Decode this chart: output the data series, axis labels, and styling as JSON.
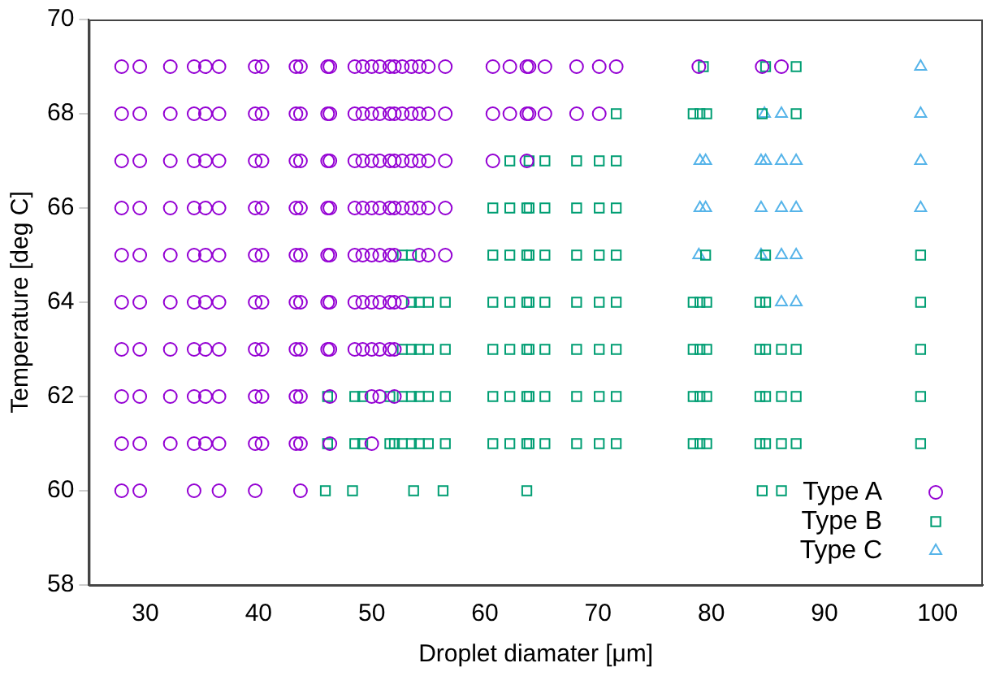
{
  "chart_data": {
    "type": "scatter",
    "xlabel": "Droplet diamater [μm]",
    "ylabel": "Temperature [deg C]",
    "xlim": [
      25,
      104
    ],
    "xticks": [
      30,
      40,
      50,
      60,
      70,
      80,
      90,
      100
    ],
    "ylim": [
      58,
      70
    ],
    "yticks": [
      58,
      60,
      62,
      64,
      66,
      68,
      70
    ],
    "grid": false,
    "legend": "bottom right",
    "series": [
      {
        "name": "Type A",
        "color": "#9400d3",
        "marker": "circle",
        "x": [
          27.9,
          29.5,
          32.2,
          34.3,
          35.3,
          36.5,
          39.7,
          40.3,
          43.3,
          43.7,
          46.1,
          46.3,
          48.5,
          49.2,
          50.0,
          50.7,
          51.6,
          52.0,
          52.7,
          53.5,
          54.2,
          55.0,
          56.5,
          60.7,
          62.2,
          63.7,
          63.9,
          65.3,
          68.1,
          70.1,
          71.6,
          78.9,
          84.5,
          86.2,
          27.9,
          29.5,
          32.2,
          34.3,
          35.3,
          36.5,
          39.7,
          40.3,
          43.3,
          43.7,
          46.1,
          46.3,
          48.5,
          49.2,
          50.0,
          50.7,
          51.6,
          52.0,
          52.7,
          53.5,
          54.2,
          55.0,
          56.5,
          60.7,
          62.2,
          63.7,
          63.9,
          65.3,
          68.1,
          70.1,
          27.9,
          29.5,
          32.2,
          34.3,
          35.3,
          36.5,
          39.7,
          40.3,
          43.3,
          43.7,
          46.1,
          46.3,
          48.5,
          49.2,
          50.0,
          50.7,
          51.6,
          52.0,
          52.7,
          53.5,
          54.2,
          55.0,
          56.5,
          60.7,
          63.7,
          27.9,
          29.5,
          32.2,
          34.3,
          35.3,
          36.5,
          39.7,
          40.3,
          43.3,
          43.7,
          46.1,
          46.3,
          48.5,
          49.2,
          50.0,
          50.7,
          51.6,
          52.0,
          52.7,
          53.5,
          54.2,
          55.0,
          56.5,
          27.9,
          29.5,
          32.2,
          34.3,
          35.3,
          36.5,
          39.7,
          40.3,
          43.3,
          43.7,
          46.1,
          46.3,
          48.5,
          49.2,
          50.0,
          50.7,
          51.6,
          52.0,
          54.2,
          55.0,
          56.5,
          27.9,
          29.5,
          32.2,
          34.3,
          35.3,
          36.5,
          39.7,
          40.3,
          43.3,
          43.7,
          46.1,
          46.3,
          48.5,
          49.2,
          50.0,
          50.7,
          51.6,
          52.0,
          52.7,
          27.9,
          29.5,
          32.2,
          34.3,
          35.3,
          36.5,
          39.7,
          40.3,
          43.3,
          43.7,
          46.1,
          46.3,
          48.5,
          49.2,
          50.0,
          50.7,
          51.6,
          52.0,
          27.9,
          29.5,
          32.2,
          34.3,
          35.3,
          36.5,
          39.7,
          40.3,
          43.3,
          43.7,
          46.3,
          50.0,
          50.7,
          52.0,
          27.9,
          29.5,
          32.2,
          34.3,
          35.3,
          36.5,
          39.7,
          40.3,
          43.3,
          43.7,
          46.3,
          50.0,
          27.9,
          29.5,
          34.3,
          36.5,
          39.7,
          43.7
        ],
        "values": [
          69,
          69,
          69,
          69,
          69,
          69,
          69,
          69,
          69,
          69,
          69,
          69,
          69,
          69,
          69,
          69,
          69,
          69,
          69,
          69,
          69,
          69,
          69,
          69,
          69,
          69,
          69,
          69,
          69,
          69,
          69,
          69,
          69,
          69,
          68,
          68,
          68,
          68,
          68,
          68,
          68,
          68,
          68,
          68,
          68,
          68,
          68,
          68,
          68,
          68,
          68,
          68,
          68,
          68,
          68,
          68,
          68,
          68,
          68,
          68,
          68,
          68,
          68,
          68,
          67,
          67,
          67,
          67,
          67,
          67,
          67,
          67,
          67,
          67,
          67,
          67,
          67,
          67,
          67,
          67,
          67,
          67,
          67,
          67,
          67,
          67,
          67,
          67,
          67,
          66,
          66,
          66,
          66,
          66,
          66,
          66,
          66,
          66,
          66,
          66,
          66,
          66,
          66,
          66,
          66,
          66,
          66,
          66,
          66,
          66,
          66,
          66,
          65,
          65,
          65,
          65,
          65,
          65,
          65,
          65,
          65,
          65,
          65,
          65,
          65,
          65,
          65,
          65,
          65,
          65,
          65,
          65,
          65,
          64,
          64,
          64,
          64,
          64,
          64,
          64,
          64,
          64,
          64,
          64,
          64,
          64,
          64,
          64,
          64,
          64,
          64,
          64,
          63,
          63,
          63,
          63,
          63,
          63,
          63,
          63,
          63,
          63,
          63,
          63,
          63,
          63,
          63,
          63,
          63,
          63,
          62,
          62,
          62,
          62,
          62,
          62,
          62,
          62,
          62,
          62,
          62,
          62,
          62,
          62,
          61,
          61,
          61,
          61,
          61,
          61,
          61,
          61,
          61,
          61,
          61,
          61,
          60,
          60,
          60,
          60,
          60,
          60
        ]
      },
      {
        "name": "Type B",
        "color": "#009e73",
        "marker": "square",
        "x": [
          79.3,
          84.8,
          87.5,
          71.6,
          78.4,
          79.0,
          79.6,
          84.5,
          87.5,
          62.2,
          63.9,
          65.3,
          68.1,
          70.1,
          71.6,
          60.7,
          62.2,
          63.7,
          63.9,
          65.3,
          68.1,
          70.1,
          71.6,
          52.7,
          53.5,
          60.7,
          62.2,
          63.7,
          63.9,
          65.3,
          68.1,
          70.1,
          71.6,
          79.5,
          84.8,
          98.5,
          53.5,
          54.2,
          55.0,
          56.5,
          60.7,
          62.2,
          63.7,
          63.9,
          65.3,
          68.1,
          70.1,
          71.6,
          78.4,
          79.0,
          79.6,
          84.3,
          84.8,
          98.5,
          52.7,
          53.5,
          54.2,
          55.0,
          56.5,
          60.7,
          62.2,
          63.7,
          63.9,
          65.3,
          68.1,
          70.1,
          71.6,
          78.4,
          79.0,
          79.6,
          84.3,
          84.8,
          86.2,
          87.5,
          98.5,
          46.1,
          48.5,
          49.2,
          51.6,
          52.7,
          53.5,
          54.2,
          55.0,
          56.5,
          60.7,
          62.2,
          63.7,
          63.9,
          65.3,
          68.1,
          70.1,
          71.6,
          78.4,
          79.0,
          79.6,
          84.3,
          84.8,
          86.2,
          87.5,
          98.5,
          46.1,
          48.5,
          49.2,
          51.6,
          52.0,
          52.7,
          53.5,
          54.2,
          55.0,
          56.5,
          60.7,
          62.2,
          63.7,
          63.9,
          65.3,
          68.1,
          70.1,
          71.6,
          78.4,
          79.0,
          79.6,
          84.3,
          84.8,
          86.2,
          87.5,
          98.5,
          45.9,
          48.3,
          53.7,
          56.3,
          63.7,
          84.5,
          86.2
        ],
        "values": [
          69,
          69,
          69,
          68,
          68,
          68,
          68,
          68,
          68,
          67,
          67,
          67,
          67,
          67,
          67,
          66,
          66,
          66,
          66,
          66,
          66,
          66,
          66,
          65,
          65,
          65,
          65,
          65,
          65,
          65,
          65,
          65,
          65,
          65,
          65,
          65,
          64,
          64,
          64,
          64,
          64,
          64,
          64,
          64,
          64,
          64,
          64,
          64,
          64,
          64,
          64,
          64,
          64,
          64,
          63,
          63,
          63,
          63,
          63,
          63,
          63,
          63,
          63,
          63,
          63,
          63,
          63,
          63,
          63,
          63,
          63,
          63,
          63,
          63,
          63,
          62,
          62,
          62,
          62,
          62,
          62,
          62,
          62,
          62,
          62,
          62,
          62,
          62,
          62,
          62,
          62,
          62,
          62,
          62,
          62,
          62,
          62,
          62,
          62,
          62,
          61,
          61,
          61,
          61,
          61,
          61,
          61,
          61,
          61,
          61,
          61,
          61,
          61,
          61,
          61,
          61,
          61,
          61,
          61,
          61,
          61,
          61,
          61,
          61,
          61,
          61,
          60,
          60,
          60,
          60,
          60,
          60,
          60
        ]
      },
      {
        "name": "Type C",
        "color": "#56b4e9",
        "marker": "triangle",
        "x": [
          98.5,
          84.7,
          86.2,
          98.5,
          79.0,
          79.5,
          84.4,
          84.8,
          86.2,
          87.5,
          98.5,
          79.0,
          79.5,
          84.4,
          86.2,
          87.5,
          98.5,
          78.9,
          84.4,
          86.2,
          87.5,
          86.2,
          87.5
        ],
        "values": [
          69,
          68,
          68,
          68,
          67,
          67,
          67,
          67,
          67,
          67,
          67,
          66,
          66,
          66,
          66,
          66,
          66,
          65,
          65,
          65,
          65,
          64,
          64
        ]
      }
    ]
  }
}
